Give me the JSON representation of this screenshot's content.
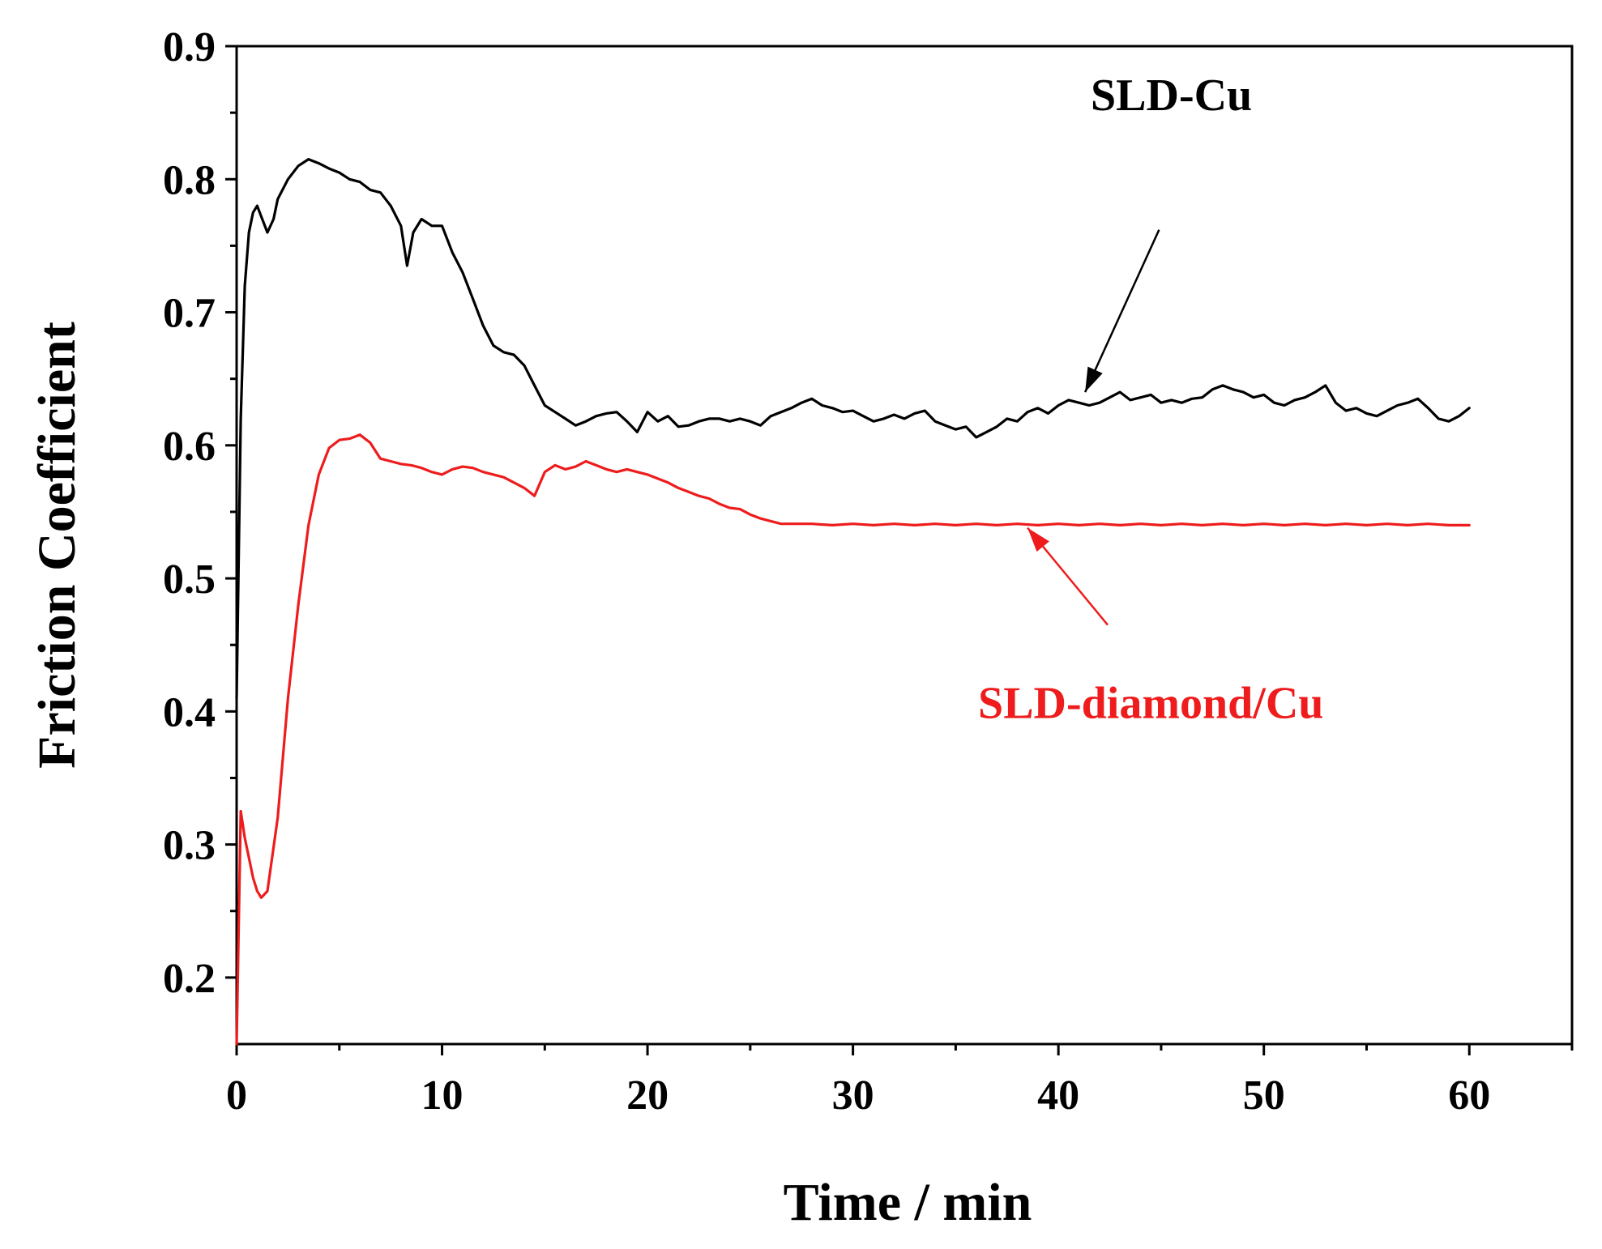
{
  "chart_data": {
    "type": "line",
    "title": "",
    "xlabel": "Time / min",
    "ylabel": "Friction Coefficient",
    "xlim": [
      0,
      65
    ],
    "ylim": [
      0.15,
      0.9
    ],
    "xticks": [
      0,
      10,
      20,
      30,
      40,
      50,
      60
    ],
    "xtick_labels": [
      "0",
      "10",
      "20",
      "30",
      "40",
      "50",
      "60"
    ],
    "yticks": [
      0.2,
      0.3,
      0.4,
      0.5,
      0.6,
      0.7,
      0.8,
      0.9
    ],
    "ytick_labels": [
      "0.2",
      "0.3",
      "0.4",
      "0.5",
      "0.6",
      "0.7",
      "0.8",
      "0.9"
    ],
    "grid": false,
    "series": [
      {
        "name": "SLD-Cu",
        "color": "#000000",
        "x": [
          0,
          0.2,
          0.4,
          0.6,
          0.8,
          1.0,
          1.2,
          1.5,
          1.8,
          2.0,
          2.5,
          3.0,
          3.5,
          4.0,
          4.5,
          5.0,
          5.5,
          6.0,
          6.5,
          7.0,
          7.5,
          8.0,
          8.3,
          8.6,
          9.0,
          9.5,
          10.0,
          10.5,
          11.0,
          11.5,
          12.0,
          12.5,
          13.0,
          13.5,
          14.0,
          14.5,
          15.0,
          15.5,
          16.0,
          16.5,
          17.0,
          17.5,
          18.0,
          18.5,
          19.0,
          19.5,
          20.0,
          20.5,
          21.0,
          21.5,
          22.0,
          22.5,
          23.0,
          23.5,
          24.0,
          24.5,
          25.0,
          25.5,
          26.0,
          26.5,
          27.0,
          27.5,
          28.0,
          28.5,
          29.0,
          29.5,
          30.0,
          30.5,
          31.0,
          31.5,
          32.0,
          32.5,
          33.0,
          33.5,
          34.0,
          34.5,
          35.0,
          35.5,
          36.0,
          36.5,
          37.0,
          37.5,
          38.0,
          38.5,
          39.0,
          39.5,
          40.0,
          40.5,
          41.0,
          41.5,
          42.0,
          42.5,
          43.0,
          43.5,
          44.0,
          44.5,
          45.0,
          45.5,
          46.0,
          46.5,
          47.0,
          47.5,
          48.0,
          48.5,
          49.0,
          49.5,
          50.0,
          50.5,
          51.0,
          51.5,
          52.0,
          52.5,
          53.0,
          53.5,
          54.0,
          54.5,
          55.0,
          55.5,
          56.0,
          56.5,
          57.0,
          57.5,
          58.0,
          58.5,
          59.0,
          59.5,
          60.0
        ],
        "y": [
          0.41,
          0.62,
          0.72,
          0.76,
          0.775,
          0.78,
          0.772,
          0.76,
          0.77,
          0.785,
          0.8,
          0.81,
          0.815,
          0.812,
          0.808,
          0.805,
          0.8,
          0.798,
          0.792,
          0.79,
          0.78,
          0.765,
          0.735,
          0.76,
          0.77,
          0.765,
          0.765,
          0.745,
          0.73,
          0.71,
          0.69,
          0.675,
          0.67,
          0.668,
          0.66,
          0.645,
          0.63,
          0.625,
          0.62,
          0.615,
          0.618,
          0.622,
          0.624,
          0.625,
          0.618,
          0.61,
          0.625,
          0.618,
          0.622,
          0.614,
          0.615,
          0.618,
          0.62,
          0.62,
          0.618,
          0.62,
          0.618,
          0.615,
          0.622,
          0.625,
          0.628,
          0.632,
          0.635,
          0.63,
          0.628,
          0.625,
          0.626,
          0.622,
          0.618,
          0.62,
          0.623,
          0.62,
          0.624,
          0.626,
          0.618,
          0.615,
          0.612,
          0.614,
          0.606,
          0.61,
          0.614,
          0.62,
          0.618,
          0.625,
          0.628,
          0.624,
          0.63,
          0.634,
          0.632,
          0.63,
          0.632,
          0.636,
          0.64,
          0.634,
          0.636,
          0.638,
          0.632,
          0.634,
          0.632,
          0.635,
          0.636,
          0.642,
          0.645,
          0.642,
          0.64,
          0.636,
          0.638,
          0.632,
          0.63,
          0.634,
          0.636,
          0.64,
          0.645,
          0.632,
          0.626,
          0.628,
          0.624,
          0.622,
          0.626,
          0.63,
          0.632,
          0.635,
          0.628,
          0.62,
          0.618,
          0.622,
          0.628
        ]
      },
      {
        "name": "SLD-diamond/Cu",
        "color": "#ee1c1c",
        "x": [
          0,
          0.2,
          0.4,
          0.6,
          0.8,
          1.0,
          1.2,
          1.5,
          2.0,
          2.5,
          3.0,
          3.5,
          4.0,
          4.5,
          5.0,
          5.5,
          6.0,
          6.5,
          7.0,
          7.5,
          8.0,
          8.5,
          9.0,
          9.5,
          10.0,
          10.5,
          11.0,
          11.5,
          12.0,
          12.5,
          13.0,
          13.5,
          14.0,
          14.5,
          15.0,
          15.5,
          16.0,
          16.5,
          17.0,
          17.5,
          18.0,
          18.5,
          19.0,
          19.5,
          20.0,
          20.5,
          21.0,
          21.5,
          22.0,
          22.5,
          23.0,
          23.5,
          24.0,
          24.5,
          25.0,
          25.5,
          26.0,
          26.5,
          27.0,
          28.0,
          29.0,
          30.0,
          31.0,
          32.0,
          33.0,
          34.0,
          35.0,
          36.0,
          37.0,
          38.0,
          39.0,
          40.0,
          41.0,
          42.0,
          43.0,
          44.0,
          45.0,
          46.0,
          47.0,
          48.0,
          49.0,
          50.0,
          51.0,
          52.0,
          53.0,
          54.0,
          55.0,
          56.0,
          57.0,
          58.0,
          59.0,
          60.0
        ],
        "y": [
          0.15,
          0.325,
          0.305,
          0.29,
          0.275,
          0.265,
          0.26,
          0.265,
          0.32,
          0.41,
          0.48,
          0.54,
          0.578,
          0.598,
          0.604,
          0.605,
          0.608,
          0.602,
          0.59,
          0.588,
          0.586,
          0.585,
          0.583,
          0.58,
          0.578,
          0.582,
          0.584,
          0.583,
          0.58,
          0.578,
          0.576,
          0.572,
          0.568,
          0.562,
          0.58,
          0.585,
          0.582,
          0.584,
          0.588,
          0.585,
          0.582,
          0.58,
          0.582,
          0.58,
          0.578,
          0.575,
          0.572,
          0.568,
          0.565,
          0.562,
          0.56,
          0.556,
          0.553,
          0.552,
          0.548,
          0.545,
          0.543,
          0.541,
          0.541,
          0.541,
          0.54,
          0.541,
          0.54,
          0.541,
          0.54,
          0.541,
          0.54,
          0.541,
          0.54,
          0.541,
          0.54,
          0.541,
          0.54,
          0.541,
          0.54,
          0.541,
          0.54,
          0.541,
          0.54,
          0.541,
          0.54,
          0.541,
          0.54,
          0.541,
          0.54,
          0.541,
          0.54,
          0.541,
          0.54,
          0.541,
          0.54,
          0.54
        ]
      }
    ],
    "annotations": [
      {
        "text": "SLD-Cu",
        "color": "#000000",
        "text_x": 45.5,
        "text_y": 0.852,
        "arrow_from": [
          44.9,
          0.762
        ],
        "arrow_to": [
          41.3,
          0.64
        ]
      },
      {
        "text": "SLD-diamond/Cu",
        "color": "#ee1c1c",
        "text_x": 44.5,
        "text_y": 0.395,
        "arrow_from": [
          42.4,
          0.465
        ],
        "arrow_to": [
          38.5,
          0.538
        ]
      }
    ]
  }
}
